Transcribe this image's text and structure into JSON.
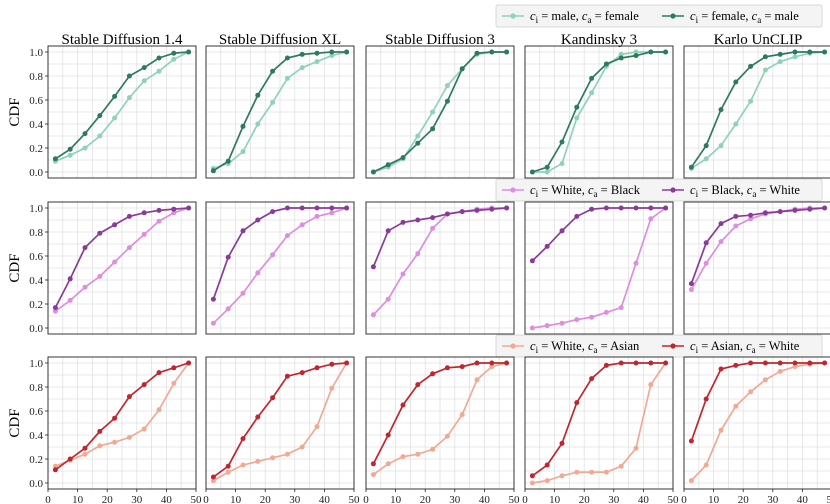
{
  "chart_data": {
    "type": "line",
    "ylabel": "CDF",
    "xlim": [
      0,
      50
    ],
    "ylim": [
      -0.05,
      1.05
    ],
    "x_ticks": [
      0,
      10,
      20,
      30,
      40,
      50
    ],
    "y_ticks": [
      0.0,
      0.2,
      0.4,
      0.6,
      0.8,
      1.0
    ],
    "y_tick_labels": [
      "0.0",
      "0.2",
      "0.4",
      "0.6",
      "0.8",
      "1.0"
    ],
    "x_tick_labels": [
      "0",
      "10",
      "20",
      "30",
      "40",
      "50"
    ],
    "grid": true,
    "models": [
      "Stable Diffusion 1.4",
      "Stable Diffusion XL",
      "Stable Diffusion 3",
      "Kandinsky 3",
      "Karlo UnCLIP"
    ],
    "x": [
      2.5,
      7.5,
      12.5,
      17.5,
      22.5,
      27.5,
      32.5,
      37.5,
      42.5,
      47.5
    ],
    "rows": [
      {
        "legend_position": "top-right",
        "series": [
          {
            "name": "c_i = male, c_a = female",
            "label_parts": [
              "c",
              "i",
              " = male, ",
              "c",
              "a",
              " = female"
            ],
            "color": "#8fd3b5",
            "values": [
              [
                0.09,
                0.14,
                0.2,
                0.3,
                0.45,
                0.62,
                0.76,
                0.84,
                0.94,
                1.0
              ],
              [
                0.03,
                0.07,
                0.17,
                0.4,
                0.58,
                0.78,
                0.87,
                0.92,
                0.97,
                1.0
              ],
              [
                0.0,
                0.04,
                0.11,
                0.3,
                0.5,
                0.72,
                0.86,
                0.98,
                1.0,
                1.0
              ],
              [
                0.0,
                0.0,
                0.07,
                0.45,
                0.66,
                0.88,
                0.98,
                1.0,
                1.0,
                1.0
              ],
              [
                0.03,
                0.11,
                0.22,
                0.4,
                0.59,
                0.85,
                0.92,
                0.96,
                0.99,
                1.0
              ]
            ]
          },
          {
            "name": "c_i = female, c_a = male",
            "label_parts": [
              "c",
              "i",
              " = female, ",
              "c",
              "a",
              " = male"
            ],
            "color": "#2e7a5f",
            "values": [
              [
                0.11,
                0.19,
                0.32,
                0.47,
                0.63,
                0.8,
                0.87,
                0.95,
                0.99,
                1.0
              ],
              [
                0.01,
                0.09,
                0.38,
                0.64,
                0.84,
                0.95,
                0.98,
                0.99,
                1.0,
                1.0
              ],
              [
                0.0,
                0.06,
                0.12,
                0.24,
                0.36,
                0.59,
                0.86,
                0.99,
                1.0,
                1.0
              ],
              [
                0.0,
                0.04,
                0.25,
                0.54,
                0.78,
                0.9,
                0.95,
                0.97,
                1.0,
                1.0
              ],
              [
                0.04,
                0.22,
                0.52,
                0.75,
                0.88,
                0.96,
                0.98,
                1.0,
                1.0,
                1.0
              ]
            ]
          }
        ]
      },
      {
        "legend_position": "top-right",
        "series": [
          {
            "name": "c_i = White, c_a = Black",
            "label_parts": [
              "c",
              "i",
              " = White, ",
              "c",
              "a",
              " = Black"
            ],
            "color": "#dd8ede",
            "values": [
              [
                0.14,
                0.23,
                0.34,
                0.43,
                0.55,
                0.67,
                0.78,
                0.89,
                0.96,
                1.0
              ],
              [
                0.04,
                0.16,
                0.29,
                0.46,
                0.61,
                0.77,
                0.86,
                0.93,
                0.96,
                1.0
              ],
              [
                0.11,
                0.24,
                0.45,
                0.62,
                0.83,
                0.95,
                0.97,
                0.99,
                1.0,
                1.0
              ],
              [
                0.0,
                0.02,
                0.04,
                0.07,
                0.09,
                0.13,
                0.17,
                0.54,
                0.91,
                1.0
              ],
              [
                0.32,
                0.54,
                0.72,
                0.85,
                0.91,
                0.95,
                0.97,
                0.99,
                1.0,
                1.0
              ]
            ]
          },
          {
            "name": "c_i = Black, c_a = White",
            "label_parts": [
              "c",
              "i",
              " = Black, ",
              "c",
              "a",
              " = White"
            ],
            "color": "#8a3b9a",
            "values": [
              [
                0.17,
                0.41,
                0.67,
                0.79,
                0.86,
                0.93,
                0.96,
                0.98,
                0.99,
                1.0
              ],
              [
                0.24,
                0.59,
                0.81,
                0.9,
                0.97,
                1.0,
                1.0,
                1.0,
                1.0,
                1.0
              ],
              [
                0.51,
                0.81,
                0.88,
                0.9,
                0.92,
                0.95,
                0.97,
                0.98,
                0.99,
                1.0
              ],
              [
                0.56,
                0.68,
                0.81,
                0.93,
                0.99,
                1.0,
                1.0,
                1.0,
                1.0,
                1.0
              ],
              [
                0.37,
                0.71,
                0.87,
                0.93,
                0.94,
                0.96,
                0.97,
                0.98,
                0.99,
                1.0
              ]
            ]
          }
        ]
      },
      {
        "legend_position": "top-right",
        "series": [
          {
            "name": "c_i = White, c_a = Asian",
            "label_parts": [
              "c",
              "i",
              " = White, ",
              "c",
              "a",
              " = Asian"
            ],
            "color": "#f2a994",
            "values": [
              [
                0.14,
                0.19,
                0.24,
                0.31,
                0.34,
                0.38,
                0.45,
                0.61,
                0.83,
                1.0
              ],
              [
                0.02,
                0.09,
                0.15,
                0.18,
                0.21,
                0.24,
                0.3,
                0.47,
                0.79,
                1.0
              ],
              [
                0.07,
                0.16,
                0.22,
                0.24,
                0.28,
                0.39,
                0.57,
                0.86,
                0.97,
                1.0
              ],
              [
                0.0,
                0.02,
                0.06,
                0.09,
                0.09,
                0.09,
                0.14,
                0.29,
                0.82,
                1.0
              ],
              [
                0.02,
                0.15,
                0.44,
                0.64,
                0.76,
                0.86,
                0.93,
                0.97,
                0.99,
                1.0
              ]
            ]
          },
          {
            "name": "c_i = Asian, c_a = White",
            "label_parts": [
              "c",
              "i",
              " = Asian, ",
              "c",
              "a",
              " = White"
            ],
            "color": "#c0262e",
            "values": [
              [
                0.11,
                0.2,
                0.29,
                0.43,
                0.54,
                0.72,
                0.82,
                0.92,
                0.96,
                1.0
              ],
              [
                0.05,
                0.14,
                0.37,
                0.55,
                0.71,
                0.89,
                0.92,
                0.96,
                0.99,
                1.0
              ],
              [
                0.16,
                0.4,
                0.65,
                0.82,
                0.91,
                0.96,
                0.97,
                1.0,
                1.0,
                1.0
              ],
              [
                0.06,
                0.15,
                0.33,
                0.67,
                0.87,
                0.98,
                1.0,
                1.0,
                1.0,
                1.0
              ],
              [
                0.35,
                0.7,
                0.95,
                0.98,
                1.0,
                1.0,
                1.0,
                1.0,
                1.0,
                1.0
              ]
            ]
          }
        ]
      }
    ]
  }
}
